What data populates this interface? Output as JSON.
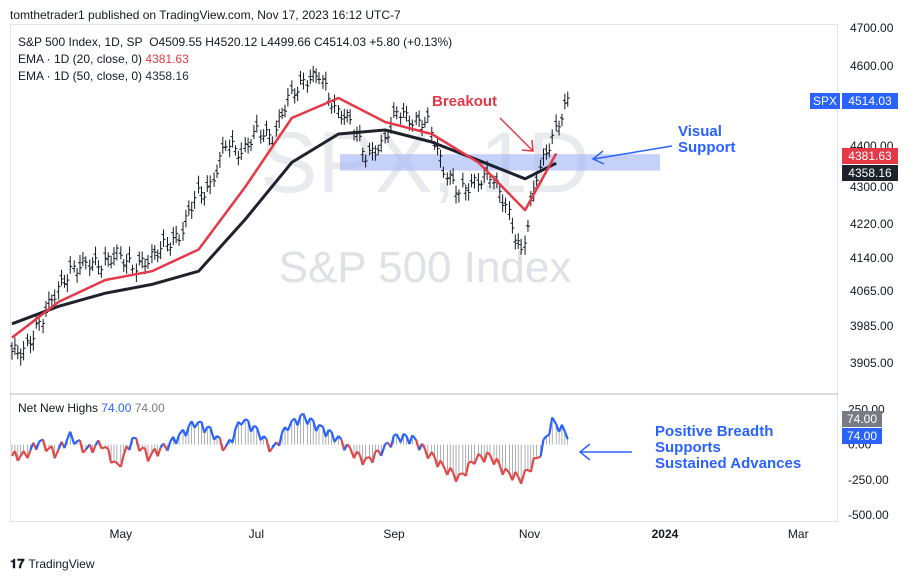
{
  "header": {
    "publisher": "tomthetrader1 published on TradingView.com, Nov 17, 2023 16:12 UTC-7"
  },
  "legend": {
    "symbol_line": "S&P 500 Index, 1D, SP",
    "ohlc": "O4509.55  H4520.12  L4499.66  C4514.03  +5.80 (+0.13%)",
    "ema20_label": "EMA · 1D (20, close, 0)",
    "ema20_value": "4381.63",
    "ema50_label": "EMA · 1D (50, close, 0)",
    "ema50_value": "4358.16",
    "nnh_label": "Net New Highs",
    "nnh_value1": "74.00",
    "nnh_value2": "74.00"
  },
  "watermark": {
    "symbol": "SPX, 1D",
    "name": "S&P 500 Index"
  },
  "annotations": {
    "breakout": "Breakout",
    "visual_support": [
      "Visual",
      "Support"
    ],
    "breadth": [
      "Positive Breadth",
      "Supports",
      "Sustained Advances"
    ]
  },
  "price_tags": {
    "symbol": "SPX",
    "last": "4514.03",
    "ema20": "4381.63",
    "ema50": "4358.16",
    "nnh1": "74.00",
    "nnh2": "74.00"
  },
  "footer": {
    "brand": "TradingView"
  },
  "colors": {
    "ema20": "#e53948",
    "ema50": "#1e222d",
    "bar": "#131722",
    "support_zone": "#9fb3f5",
    "breadth_pos": "#2962ff",
    "breadth_neg": "#e04a4a",
    "annotation_red": "#e53948",
    "annotation_blue": "#2962ff",
    "tag_blue": "#2962ff"
  },
  "chart_data": [
    {
      "type": "line",
      "style": "ohlc-bars",
      "title": "S&P 500 Index, 1D, SP",
      "x_ticks": [
        "May",
        "Jul",
        "Sep",
        "Nov",
        "2024",
        "Mar"
      ],
      "y_ticks": [
        3905,
        3985,
        4065,
        4140,
        4220,
        4300,
        4400,
        4600,
        4700
      ],
      "ylim": [
        3850,
        4700
      ],
      "grid": false,
      "support_zone": [
        4340,
        4380
      ],
      "series": [
        {
          "name": "S&P 500 Index",
          "x": [
            "2023-03-13",
            "2023-03-20",
            "2023-03-27",
            "2023-04-03",
            "2023-04-10",
            "2023-04-17",
            "2023-04-24",
            "2023-05-01",
            "2023-05-08",
            "2023-05-15",
            "2023-05-22",
            "2023-05-29",
            "2023-06-05",
            "2023-06-12",
            "2023-06-19",
            "2023-06-26",
            "2023-07-03",
            "2023-07-10",
            "2023-07-17",
            "2023-07-24",
            "2023-07-31",
            "2023-08-07",
            "2023-08-14",
            "2023-08-21",
            "2023-08-28",
            "2023-09-04",
            "2023-09-11",
            "2023-09-18",
            "2023-09-25",
            "2023-10-02",
            "2023-10-09",
            "2023-10-16",
            "2023-10-23",
            "2023-10-30",
            "2023-11-06",
            "2023-11-13"
          ],
          "values": [
            3930,
            3990,
            4060,
            4110,
            4130,
            4125,
            4150,
            4120,
            4135,
            4170,
            4190,
            4280,
            4300,
            4410,
            4380,
            4440,
            4420,
            4520,
            4560,
            4580,
            4490,
            4465,
            4375,
            4400,
            4490,
            4460,
            4460,
            4340,
            4290,
            4310,
            4330,
            4260,
            4150,
            4330,
            4420,
            4514
          ]
        },
        {
          "name": "EMA · 1D (20, close, 0)",
          "x": [
            "2023-03-13",
            "2023-04-03",
            "2023-04-24",
            "2023-05-15",
            "2023-06-05",
            "2023-06-26",
            "2023-07-17",
            "2023-08-07",
            "2023-08-28",
            "2023-09-18",
            "2023-10-09",
            "2023-10-30",
            "2023-11-13"
          ],
          "values": [
            3960,
            4040,
            4090,
            4110,
            4160,
            4300,
            4470,
            4520,
            4460,
            4430,
            4360,
            4250,
            4381.63
          ]
        },
        {
          "name": "EMA · 1D (50, close, 0)",
          "x": [
            "2023-03-13",
            "2023-04-03",
            "2023-04-24",
            "2023-05-15",
            "2023-06-05",
            "2023-06-26",
            "2023-07-17",
            "2023-08-07",
            "2023-08-28",
            "2023-09-18",
            "2023-10-09",
            "2023-10-30",
            "2023-11-13"
          ],
          "values": [
            3990,
            4030,
            4060,
            4080,
            4110,
            4230,
            4360,
            4430,
            4440,
            4410,
            4365,
            4320,
            4358.16
          ]
        }
      ]
    },
    {
      "type": "bar",
      "title": "Net New Highs",
      "y_ticks": [
        250,
        0,
        -250,
        -500
      ],
      "ylim": [
        -520,
        260
      ],
      "x": [
        "2023-03-13",
        "2023-03-20",
        "2023-03-27",
        "2023-04-03",
        "2023-04-10",
        "2023-04-17",
        "2023-04-24",
        "2023-05-01",
        "2023-05-08",
        "2023-05-15",
        "2023-05-22",
        "2023-05-29",
        "2023-06-05",
        "2023-06-12",
        "2023-06-19",
        "2023-06-26",
        "2023-07-03",
        "2023-07-10",
        "2023-07-17",
        "2023-07-24",
        "2023-07-31",
        "2023-08-07",
        "2023-08-14",
        "2023-08-21",
        "2023-08-28",
        "2023-09-04",
        "2023-09-11",
        "2023-09-18",
        "2023-09-25",
        "2023-10-02",
        "2023-10-09",
        "2023-10-16",
        "2023-10-23",
        "2023-10-30",
        "2023-11-06",
        "2023-11-13"
      ],
      "values": [
        -80,
        20,
        -60,
        60,
        -40,
        10,
        -160,
        40,
        -80,
        -20,
        60,
        160,
        100,
        -30,
        180,
        100,
        -40,
        140,
        200,
        120,
        60,
        -40,
        -120,
        -40,
        60,
        40,
        -60,
        -160,
        -240,
        -100,
        -80,
        -200,
        -240,
        -100,
        160,
        74
      ]
    }
  ]
}
